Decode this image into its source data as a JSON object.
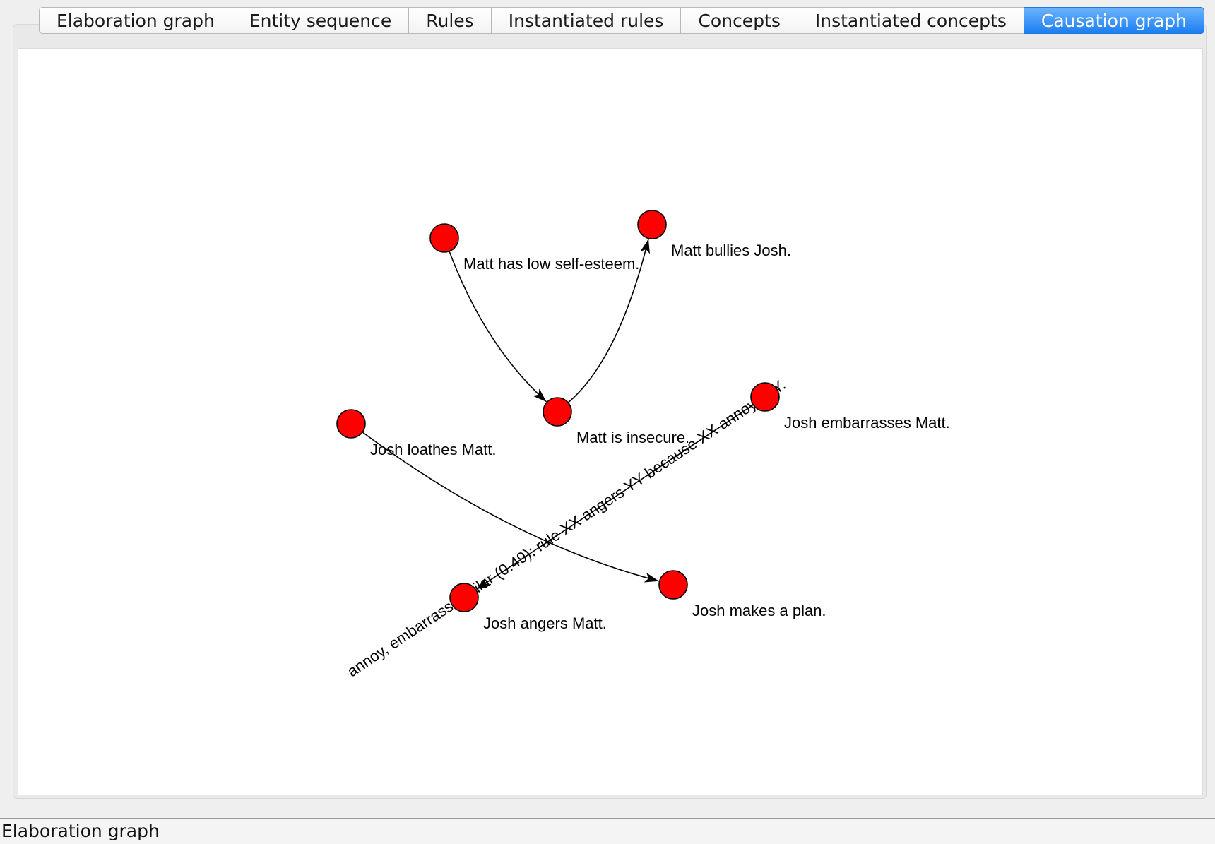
{
  "tabs": [
    {
      "label": "Elaboration graph",
      "active": false
    },
    {
      "label": "Entity sequence",
      "active": false
    },
    {
      "label": "Rules",
      "active": false
    },
    {
      "label": "Instantiated rules",
      "active": false
    },
    {
      "label": "Concepts",
      "active": false
    },
    {
      "label": "Instantiated concepts",
      "active": false
    },
    {
      "label": "Causation graph",
      "active": true
    }
  ],
  "graph": {
    "node_color": "#ff0000",
    "edge_color": "#000000",
    "nodes": [
      {
        "id": "n1",
        "label": "Matt has low self-esteem."
      },
      {
        "id": "n2",
        "label": "Matt bullies Josh."
      },
      {
        "id": "n3",
        "label": "Matt is insecure."
      },
      {
        "id": "n4",
        "label": "Josh loathes Matt."
      },
      {
        "id": "n5",
        "label": "Josh embarrasses Matt."
      },
      {
        "id": "n6",
        "label": "Josh angers Matt."
      },
      {
        "id": "n7",
        "label": "Josh makes a plan."
      }
    ],
    "edges": [
      {
        "from": "n1",
        "to": "n3",
        "label": ""
      },
      {
        "from": "n3",
        "to": "n2",
        "label": ""
      },
      {
        "from": "n4",
        "to": "n7",
        "label": ""
      },
      {
        "from": "n5",
        "to": "n6",
        "label": "annoy, embarrass similar (0.49); rule XX angers YY because XX annoys YY."
      }
    ]
  },
  "status": {
    "text": "Elaboration graph"
  }
}
